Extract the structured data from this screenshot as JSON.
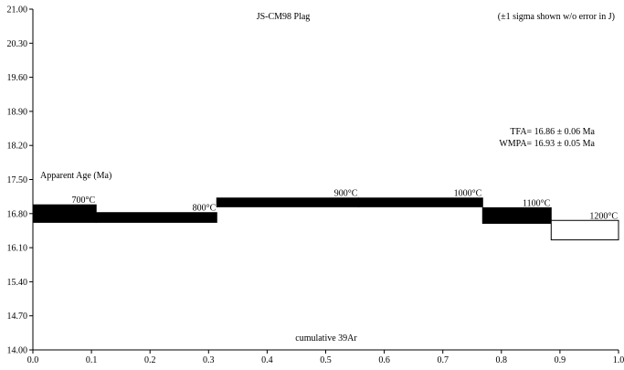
{
  "chart_data": {
    "type": "step",
    "title": "JS-CM98 Plag",
    "note": "(±1 sigma shown w/o error in J)",
    "ylabel": "Apparent Age (Ma)",
    "xlabel": "cumulative 39Ar",
    "xlim": [
      0.0,
      1.0
    ],
    "ylim": [
      14.0,
      21.0
    ],
    "x_ticks": [
      "0.0",
      "0.1",
      "0.2",
      "0.3",
      "0.4",
      "0.5",
      "0.6",
      "0.7",
      "0.8",
      "0.9",
      "1.0"
    ],
    "y_ticks": [
      "14.00",
      "14.70",
      "15.40",
      "16.10",
      "16.80",
      "17.50",
      "18.20",
      "18.90",
      "19.60",
      "20.30",
      "21.00"
    ],
    "steps": [
      {
        "label": "700°C",
        "x0": 0.0,
        "x1": 0.108,
        "age": 16.8,
        "err": 0.18,
        "filled": true
      },
      {
        "label": "800°C",
        "x0": 0.108,
        "x1": 0.314,
        "age": 16.72,
        "err": 0.1,
        "filled": true
      },
      {
        "label": "900°C",
        "x0": 0.314,
        "x1": 0.556,
        "age": 17.03,
        "err": 0.09,
        "filled": true
      },
      {
        "label": "1000°C",
        "x0": 0.556,
        "x1": 0.768,
        "age": 17.03,
        "err": 0.09,
        "filled": true
      },
      {
        "label": "1100°C",
        "x0": 0.768,
        "x1": 0.885,
        "age": 16.76,
        "err": 0.16,
        "filled": true
      },
      {
        "label": "1200°C",
        "x0": 0.885,
        "x1": 1.0,
        "age": 16.46,
        "err": 0.2,
        "filled": false
      }
    ],
    "annotations": {
      "tfa": "TFA= 16.86 ± 0.06 Ma",
      "wmpa": "WMPA= 16.93 ± 0.05 Ma"
    }
  }
}
